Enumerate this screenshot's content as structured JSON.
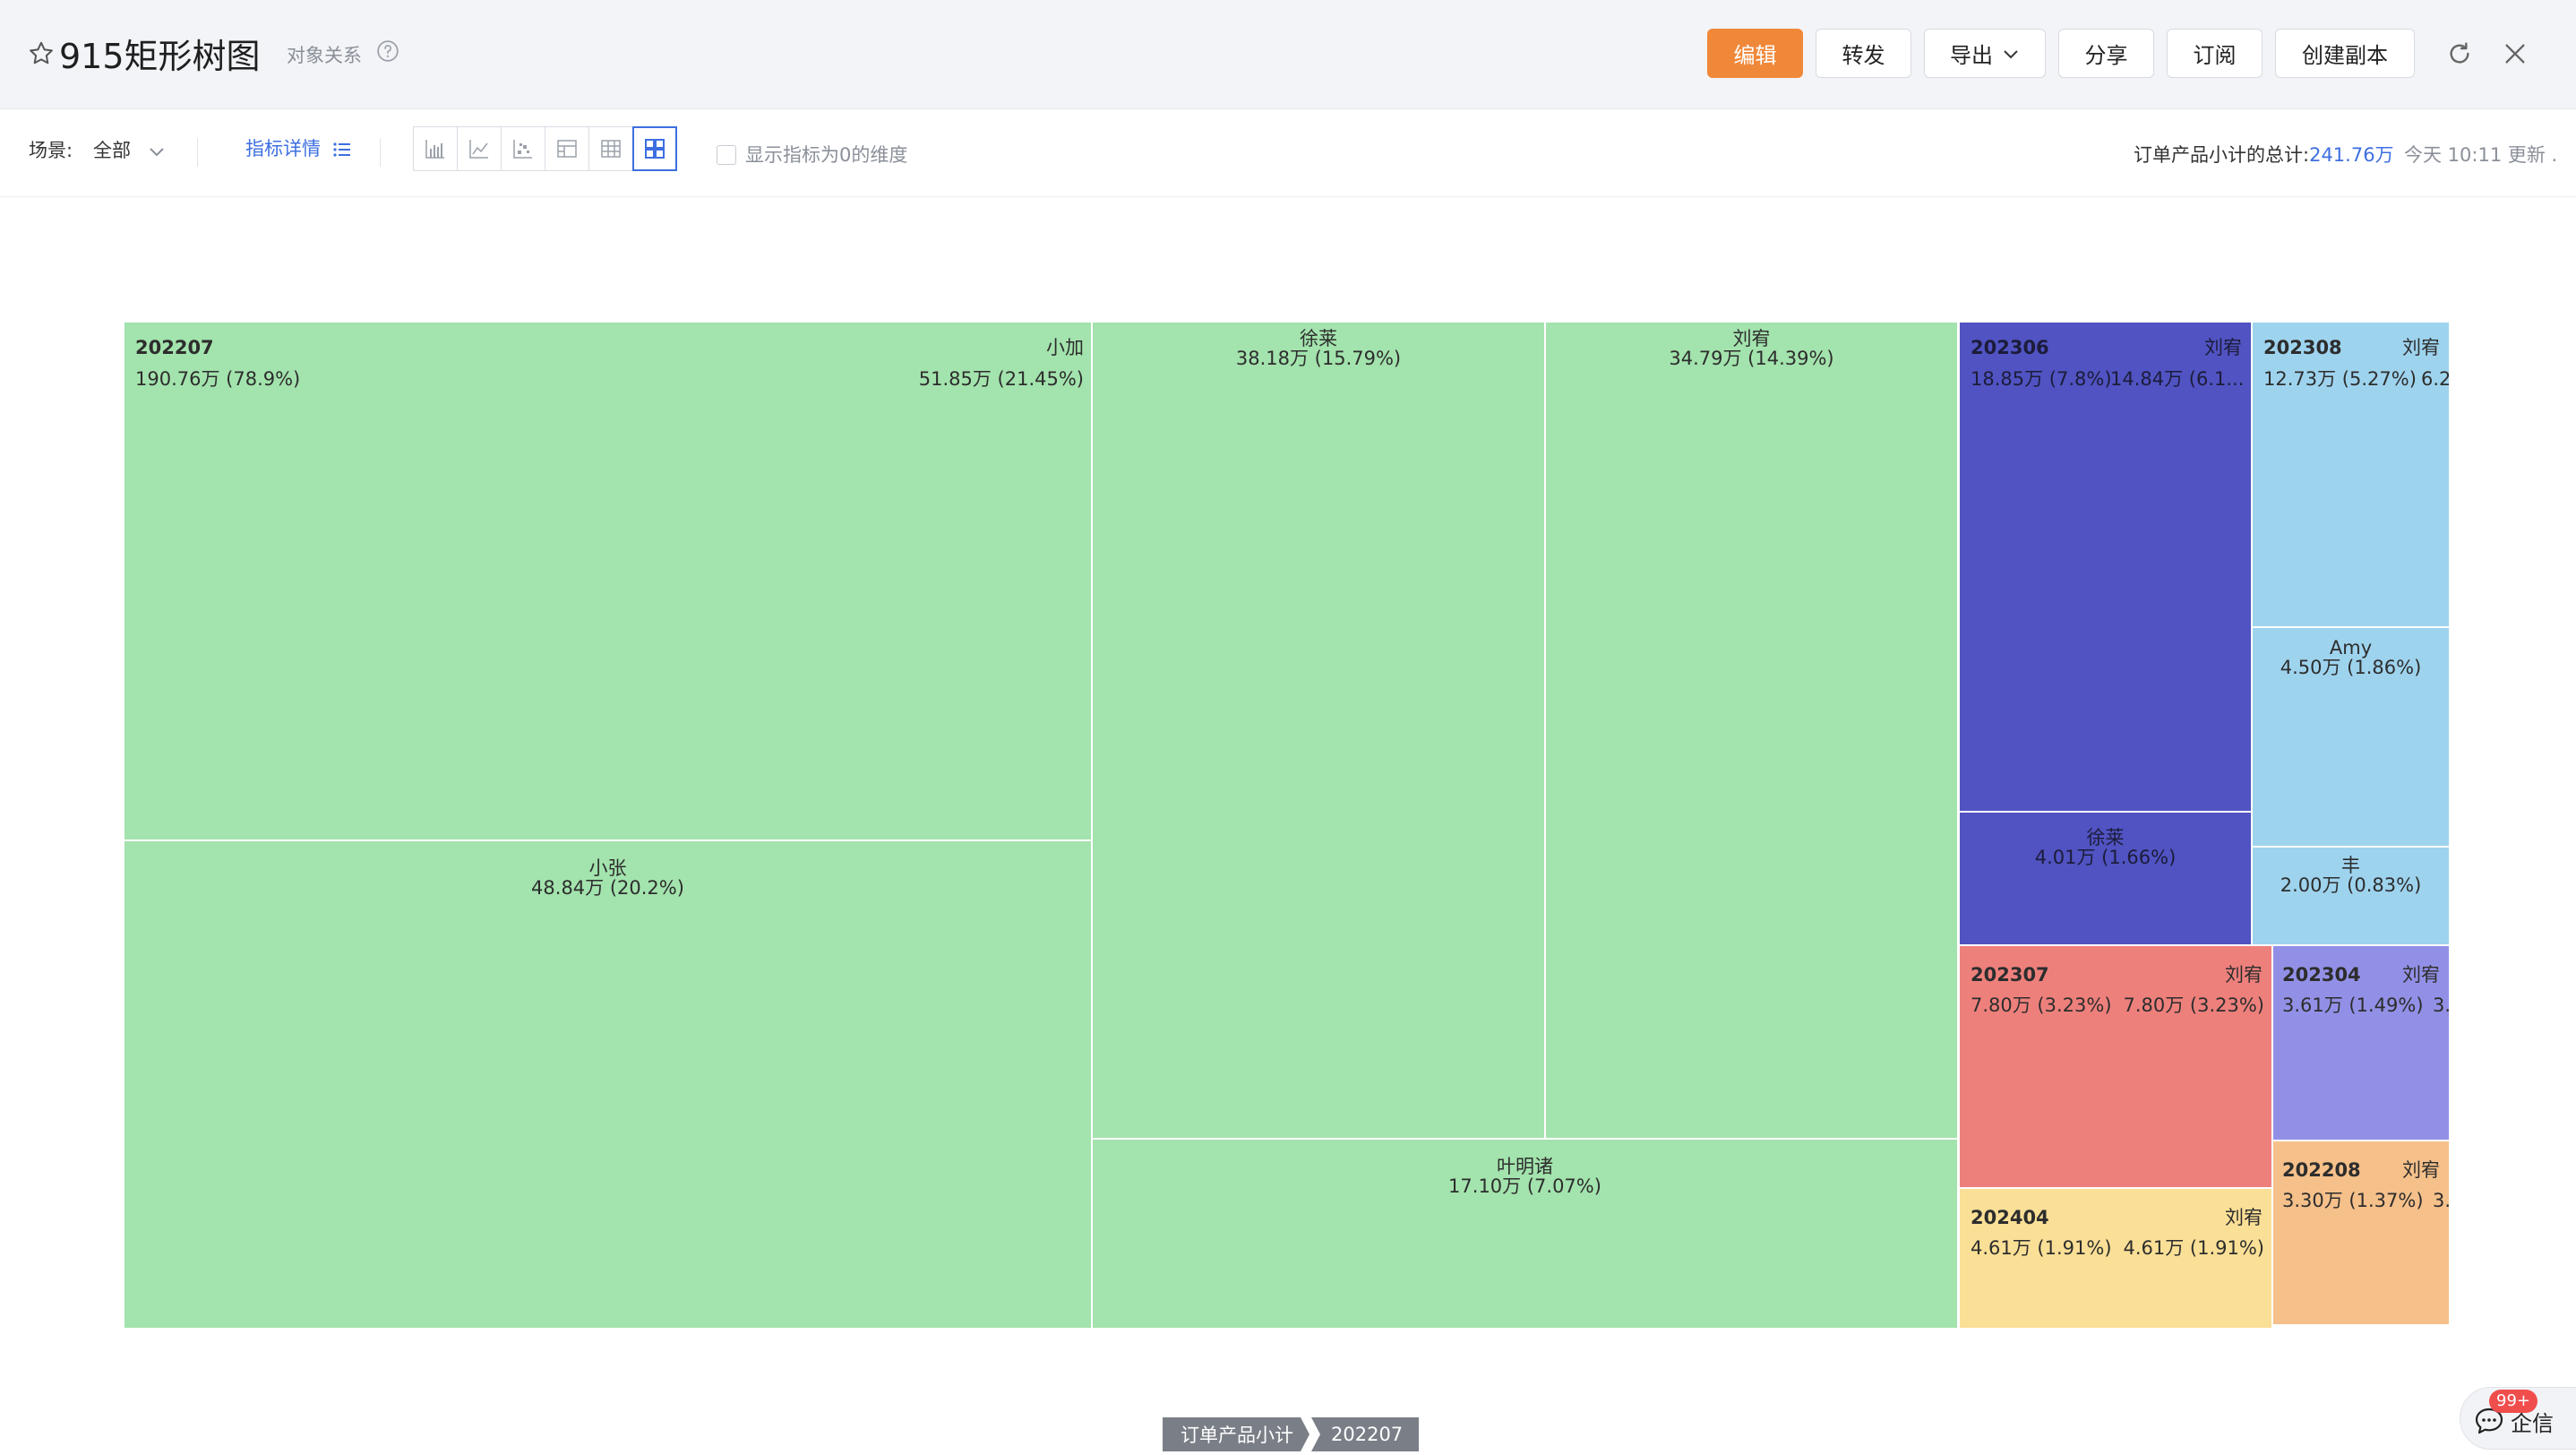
{
  "header": {
    "title": "915矩形树图",
    "subtitle": "对象关系",
    "buttons": {
      "edit": "编辑",
      "forward": "转发",
      "export": "导出",
      "share": "分享",
      "subscribe": "订阅",
      "copy": "创建副本"
    },
    "icons": [
      "star-icon",
      "help-icon",
      "chevron-down-icon",
      "refresh-icon",
      "close-icon"
    ]
  },
  "toolbar": {
    "scene_label": "场景:",
    "scene_value": "全部",
    "metric_detail": "指标详情",
    "show_zero_label": "显示指标为0的维度",
    "show_zero_checked": false,
    "total_label": "订单产品小计的总计:",
    "total_value": "241.76万",
    "updated": "今天 10:11 更新 .",
    "view_types": [
      "bar-chart-icon",
      "line-chart-icon",
      "scatter-icon",
      "pivot-table-icon",
      "table-icon",
      "treemap-icon"
    ],
    "active_view": "treemap-icon"
  },
  "chart_data": {
    "type": "treemap",
    "metric": "订单产品小计",
    "groups": [
      {
        "name": "202207",
        "value_text": "190.76万 (78.9%)",
        "color": "#a3e3ad",
        "children": [
          {
            "name": "小加",
            "value_text": "51.85万 (21.45%)"
          },
          {
            "name": "小张",
            "value_text": "48.84万 (20.2%)"
          },
          {
            "name": "徐莱",
            "value_text": "38.18万 (15.79%)"
          },
          {
            "name": "刘宥",
            "value_text": "34.79万 (14.39%)"
          },
          {
            "name": "叶明诸",
            "value_text": "17.10万 (7.07%)"
          }
        ]
      },
      {
        "name": "202306",
        "value_text": "18.85万 (7.8%)",
        "color": "#5053c1",
        "children": [
          {
            "name": "刘宥",
            "value_text": "14.84万 (6.1..."
          },
          {
            "name": "徐莱",
            "value_text": "4.01万 (1.66%)"
          }
        ]
      },
      {
        "name": "202308",
        "value_text": "12.73万 (5.27%)",
        "color": "#9ed3ee",
        "children": [
          {
            "name": "刘宥",
            "value_text": "6.2"
          },
          {
            "name": "Amy",
            "value_text": "4.50万 (1.86%)"
          },
          {
            "name": "丰",
            "value_text": "2.00万 (0.83%)"
          }
        ]
      },
      {
        "name": "202307",
        "value_text": "7.80万 (3.23%)",
        "color": "#ee807c",
        "children": [
          {
            "name": "刘宥",
            "value_text": "7.80万 (3.23%)"
          }
        ]
      },
      {
        "name": "202304",
        "value_text": "3.61万 (1.49%)",
        "color": "#9290e6",
        "children": [
          {
            "name": "刘宥",
            "value_text": "3."
          }
        ]
      },
      {
        "name": "202404",
        "value_text": "4.61万 (1.91%)",
        "color": "#fadf96",
        "children": [
          {
            "name": "刘宥",
            "value_text": "4.61万 (1.91%)"
          }
        ]
      },
      {
        "name": "202208",
        "value_text": "3.30万 (1.37%)",
        "color": "#f5c08a",
        "children": [
          {
            "name": "刘宥",
            "value_text": "3."
          }
        ]
      }
    ]
  },
  "breadcrumb": [
    "订单产品小计",
    "202207"
  ],
  "chat_widget": {
    "label": "企信",
    "badge": "99+"
  }
}
